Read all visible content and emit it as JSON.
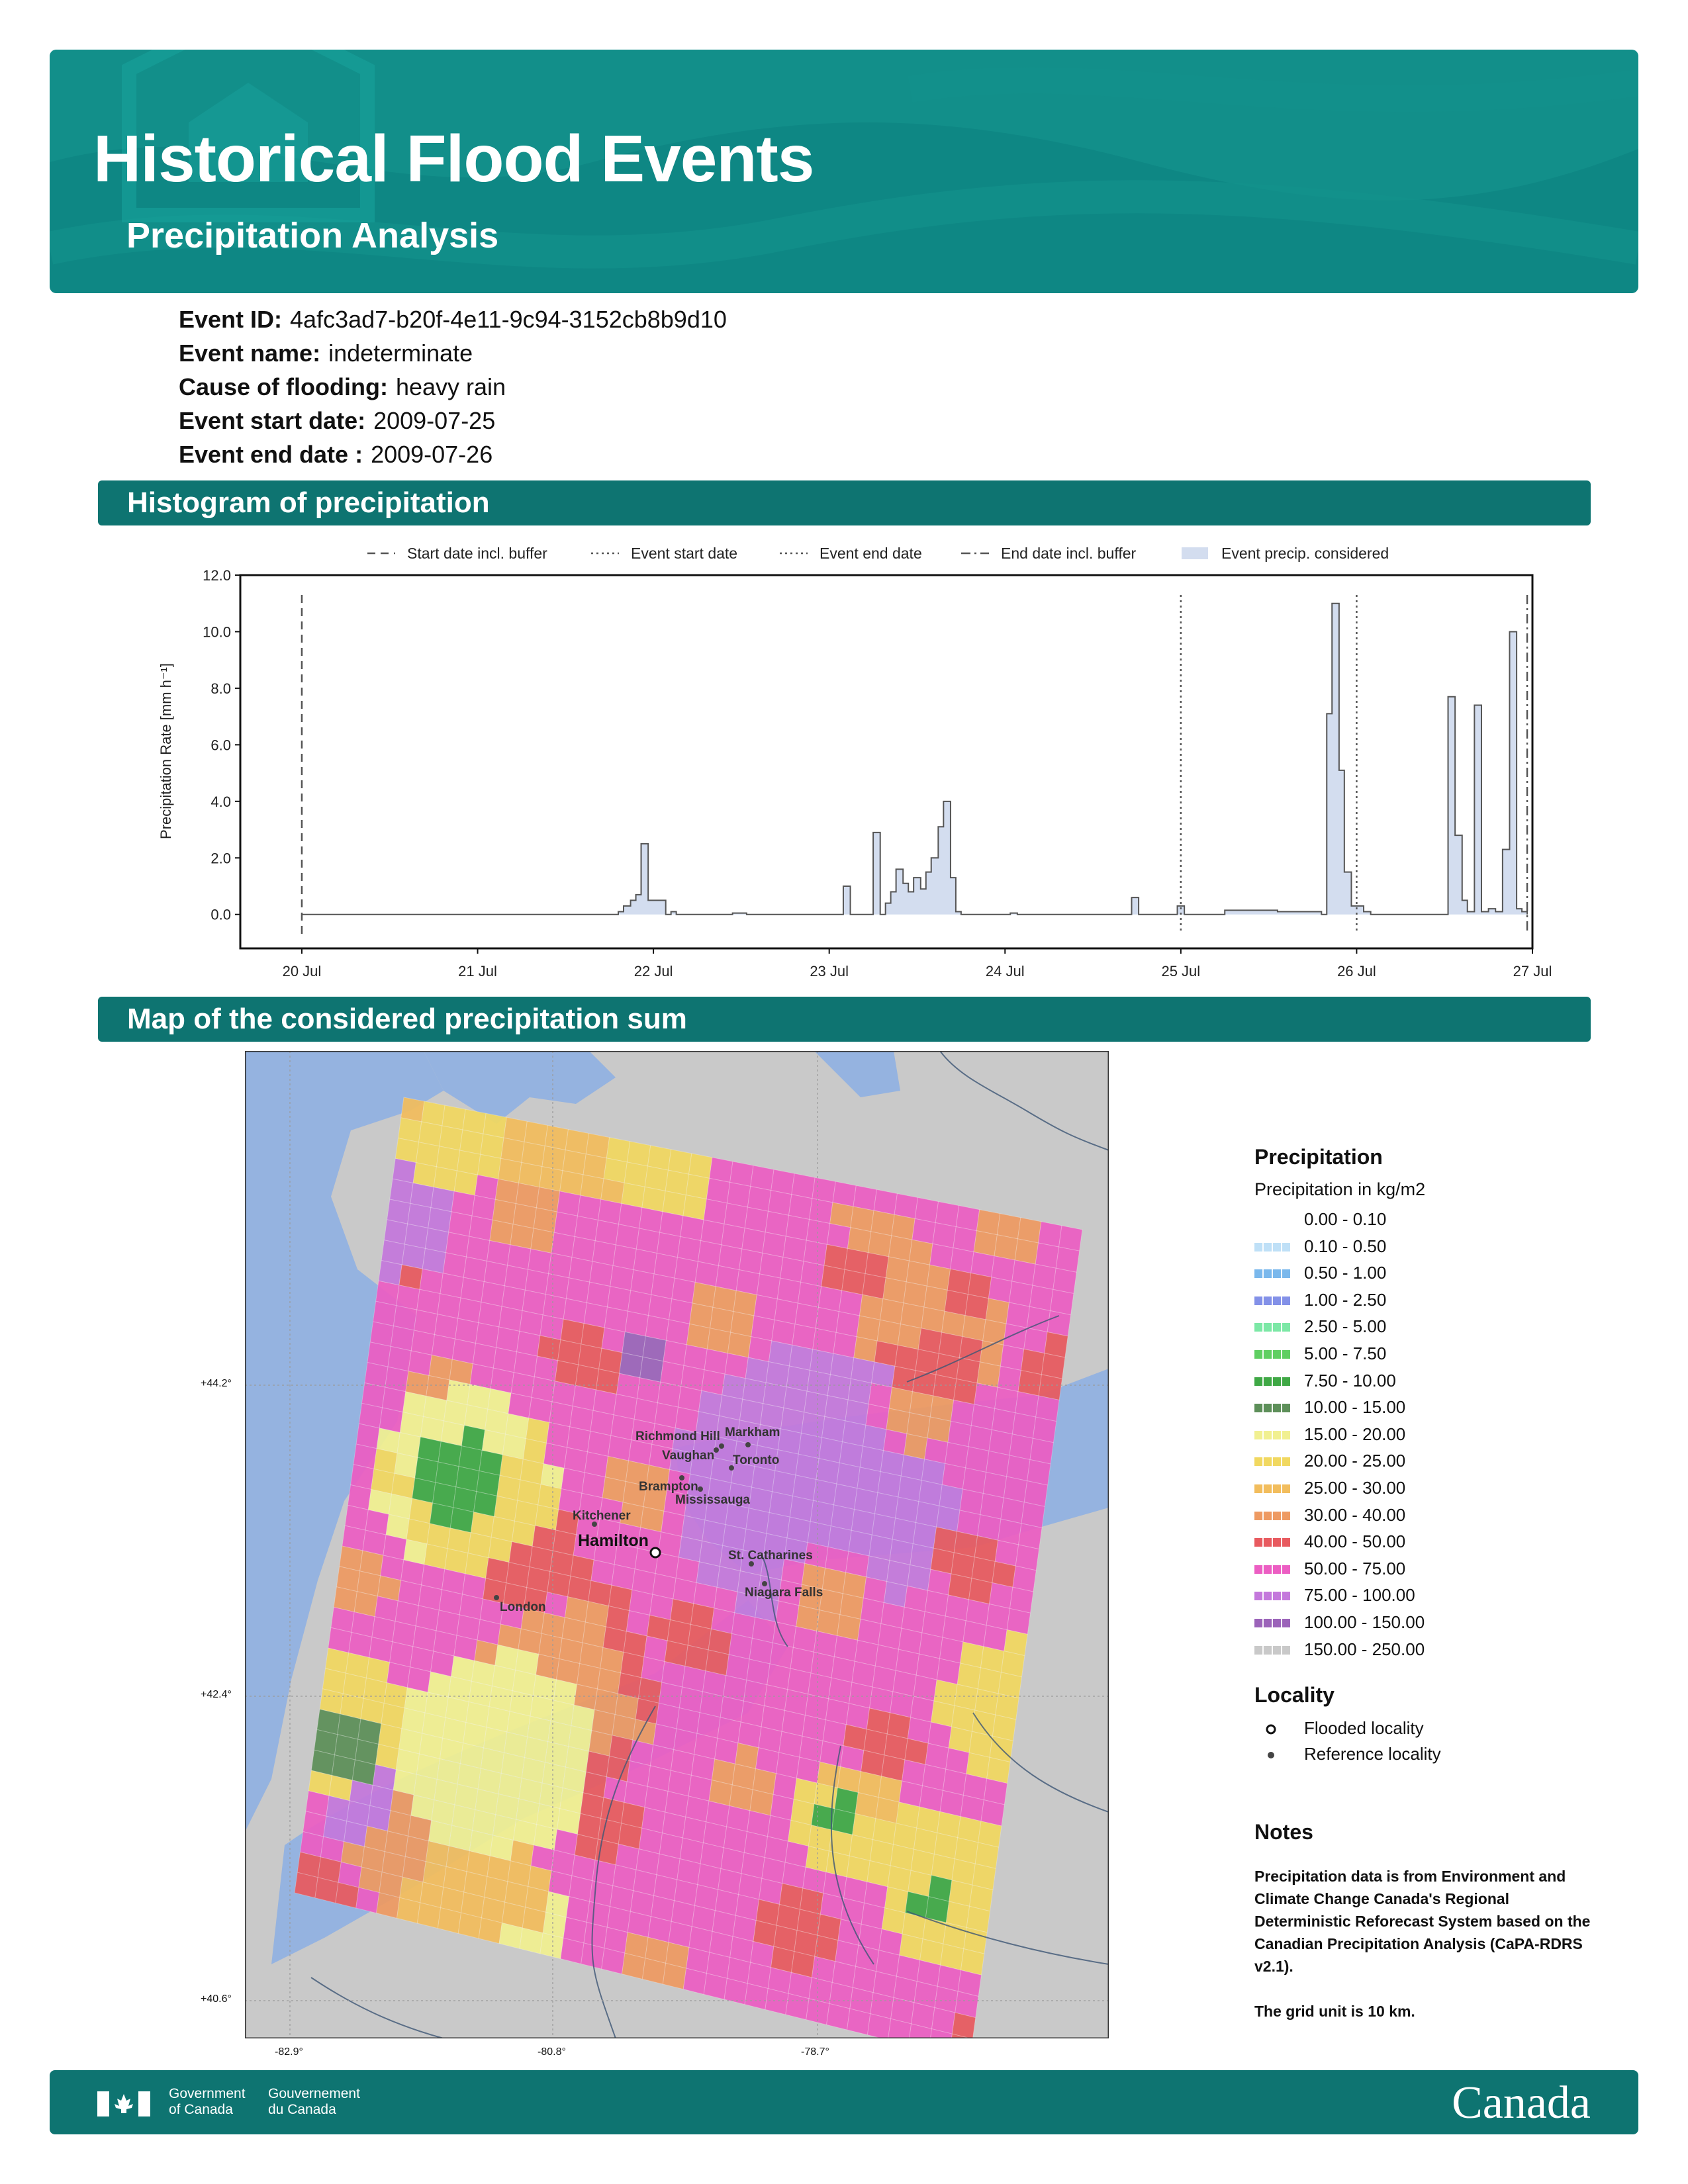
{
  "header": {
    "title": "Historical Flood Events",
    "subtitle": "Precipitation Analysis"
  },
  "event": [
    {
      "key": "Event ID:",
      "value": "4afc3ad7-b20f-4e11-9c94-3152cb8b9d10"
    },
    {
      "key": "Event name:",
      "value": "indeterminate"
    },
    {
      "key": "Cause of flooding:",
      "value": "heavy rain"
    },
    {
      "key": "Event start date:",
      "value": "2009-07-25"
    },
    {
      "key": "Event end date :",
      "value": "2009-07-26"
    }
  ],
  "sections": {
    "histogram": "Histogram of precipitation",
    "map": "Map of the considered precipitation sum"
  },
  "chart_data": {
    "type": "area",
    "title": "",
    "xlabel": "",
    "ylabel": "Precipitation Rate [mm h⁻¹]",
    "ylim": [
      -1.2,
      12.0
    ],
    "yticks": [
      "0.0",
      "2.0",
      "4.0",
      "6.0",
      "8.0",
      "10.0",
      "12.0"
    ],
    "xticks": [
      "20 Jul",
      "21 Jul",
      "22 Jul",
      "23 Jul",
      "24 Jul",
      "25 Jul",
      "26 Jul",
      "27 Jul"
    ],
    "xlim_days": [
      -0.35,
      7.0
    ],
    "legend_position": "top",
    "legend": [
      {
        "label": "Start date incl. buffer",
        "style": "dashed"
      },
      {
        "label": "Event start date",
        "style": "dotted"
      },
      {
        "label": "Event end date",
        "style": "dotted"
      },
      {
        "label": "End date incl. buffer",
        "style": "dashdot"
      },
      {
        "label": "Event precip. considered",
        "style": "fill"
      }
    ],
    "vlines": [
      {
        "label": "Start date incl. buffer",
        "day": 0.0,
        "style": "dashed"
      },
      {
        "label": "Event start date",
        "day": 5.0,
        "style": "dotted"
      },
      {
        "label": "Event end date",
        "day": 6.0,
        "style": "dotted"
      },
      {
        "label": "End date incl. buffer",
        "day": 6.97,
        "style": "dashdot"
      }
    ],
    "series": [
      {
        "fill": "#d3ddef",
        "stroke": "#555555",
        "points": [
          [
            0.0,
            0.0
          ],
          [
            1.75,
            0.0
          ],
          [
            1.8,
            0.1
          ],
          [
            1.83,
            0.3
          ],
          [
            1.87,
            0.5
          ],
          [
            1.9,
            0.7
          ],
          [
            1.93,
            2.5
          ],
          [
            1.97,
            0.5
          ],
          [
            2.07,
            0.0
          ],
          [
            2.1,
            0.1
          ],
          [
            2.13,
            0.0
          ],
          [
            2.45,
            0.05
          ],
          [
            2.53,
            0.0
          ],
          [
            3.05,
            0.0
          ],
          [
            3.08,
            1.0
          ],
          [
            3.12,
            0.0
          ],
          [
            3.22,
            0.0
          ],
          [
            3.25,
            2.9
          ],
          [
            3.29,
            0.0
          ],
          [
            3.32,
            0.4
          ],
          [
            3.35,
            0.8
          ],
          [
            3.38,
            1.6
          ],
          [
            3.42,
            1.1
          ],
          [
            3.45,
            0.8
          ],
          [
            3.48,
            1.3
          ],
          [
            3.52,
            0.9
          ],
          [
            3.55,
            1.5
          ],
          [
            3.58,
            2.0
          ],
          [
            3.62,
            3.1
          ],
          [
            3.65,
            4.0
          ],
          [
            3.69,
            1.3
          ],
          [
            3.72,
            0.1
          ],
          [
            3.75,
            0.0
          ],
          [
            4.03,
            0.05
          ],
          [
            4.07,
            0.0
          ],
          [
            4.7,
            0.0
          ],
          [
            4.72,
            0.6
          ],
          [
            4.76,
            0.0
          ],
          [
            4.96,
            0.0
          ],
          [
            4.98,
            0.3
          ],
          [
            5.02,
            0.0
          ],
          [
            5.25,
            0.15
          ],
          [
            5.5,
            0.15
          ],
          [
            5.55,
            0.1
          ],
          [
            5.8,
            0.0
          ],
          [
            5.83,
            7.1
          ],
          [
            5.86,
            11.0
          ],
          [
            5.9,
            5.1
          ],
          [
            5.93,
            1.5
          ],
          [
            5.97,
            0.3
          ],
          [
            6.0,
            0.3
          ],
          [
            6.04,
            0.1
          ],
          [
            6.08,
            0.0
          ],
          [
            6.5,
            0.0
          ],
          [
            6.52,
            7.7
          ],
          [
            6.56,
            2.8
          ],
          [
            6.6,
            0.5
          ],
          [
            6.63,
            0.1
          ],
          [
            6.67,
            7.4
          ],
          [
            6.71,
            0.1
          ],
          [
            6.75,
            0.2
          ],
          [
            6.79,
            0.1
          ],
          [
            6.83,
            2.3
          ],
          [
            6.87,
            10.0
          ],
          [
            6.91,
            0.2
          ],
          [
            6.94,
            0.1
          ],
          [
            6.97,
            0.0
          ]
        ]
      }
    ]
  },
  "map": {
    "y_ticks": [
      "+44.2°",
      "+42.4°",
      "+40.6°"
    ],
    "x_ticks": [
      "-82.9°",
      "-80.8°",
      "-78.7°"
    ],
    "localities": {
      "flooded": [
        "Hamilton"
      ],
      "reference": [
        "Richmond Hill",
        "Markham",
        "Vaughan",
        "Toronto",
        "Brampton",
        "Mississauga",
        "Kitchener",
        "St. Catharines",
        "Niagara Falls",
        "London"
      ]
    },
    "legend": {
      "title": "Precipitation",
      "subtitle": "Precipitation in kg/m2",
      "classes": [
        {
          "label": "0.00 - 0.10",
          "color": "#ffffff"
        },
        {
          "label": "0.10 - 0.50",
          "color": "#bfe0f7"
        },
        {
          "label": "0.50 - 1.00",
          "color": "#7ab8ec"
        },
        {
          "label": "1.00 - 2.50",
          "color": "#8391e8"
        },
        {
          "label": "2.50 - 5.00",
          "color": "#7ce8a6"
        },
        {
          "label": "5.00 - 7.50",
          "color": "#5fcf62"
        },
        {
          "label": "7.50 - 10.00",
          "color": "#3fa845"
        },
        {
          "label": "10.00 - 15.00",
          "color": "#5d8f59"
        },
        {
          "label": "15.00 - 20.00",
          "color": "#f1f091"
        },
        {
          "label": "20.00 - 25.00",
          "color": "#f1d860"
        },
        {
          "label": "25.00 - 30.00",
          "color": "#f2bd5d"
        },
        {
          "label": "30.00 - 40.00",
          "color": "#ee9a62"
        },
        {
          "label": "40.00 - 50.00",
          "color": "#e85a5f"
        },
        {
          "label": "50.00 - 75.00",
          "color": "#ec5ec3"
        },
        {
          "label": "75.00 - 100.00",
          "color": "#c478dc"
        },
        {
          "label": "100.00 - 150.00",
          "color": "#9b63b9"
        },
        {
          "label": "150.00 - 250.00",
          "color": "#c9c9c9"
        }
      ],
      "locality_title": "Locality",
      "flooded_label": "Flooded locality",
      "reference_label": "Reference locality"
    },
    "notes_title": "Notes",
    "notes": [
      "Precipitation data is from Environment and Climate Change Canada's Regional Deterministic Reforecast System based on the Canadian Precipitation Analysis (CaPA-RDRS v2.1).",
      "The grid unit is 10 km."
    ]
  },
  "footer": {
    "gov_en_1": "Government",
    "gov_en_2": "of Canada",
    "gov_fr_1": "Gouvernement",
    "gov_fr_2": "du Canada",
    "wordmark": "Canada"
  }
}
